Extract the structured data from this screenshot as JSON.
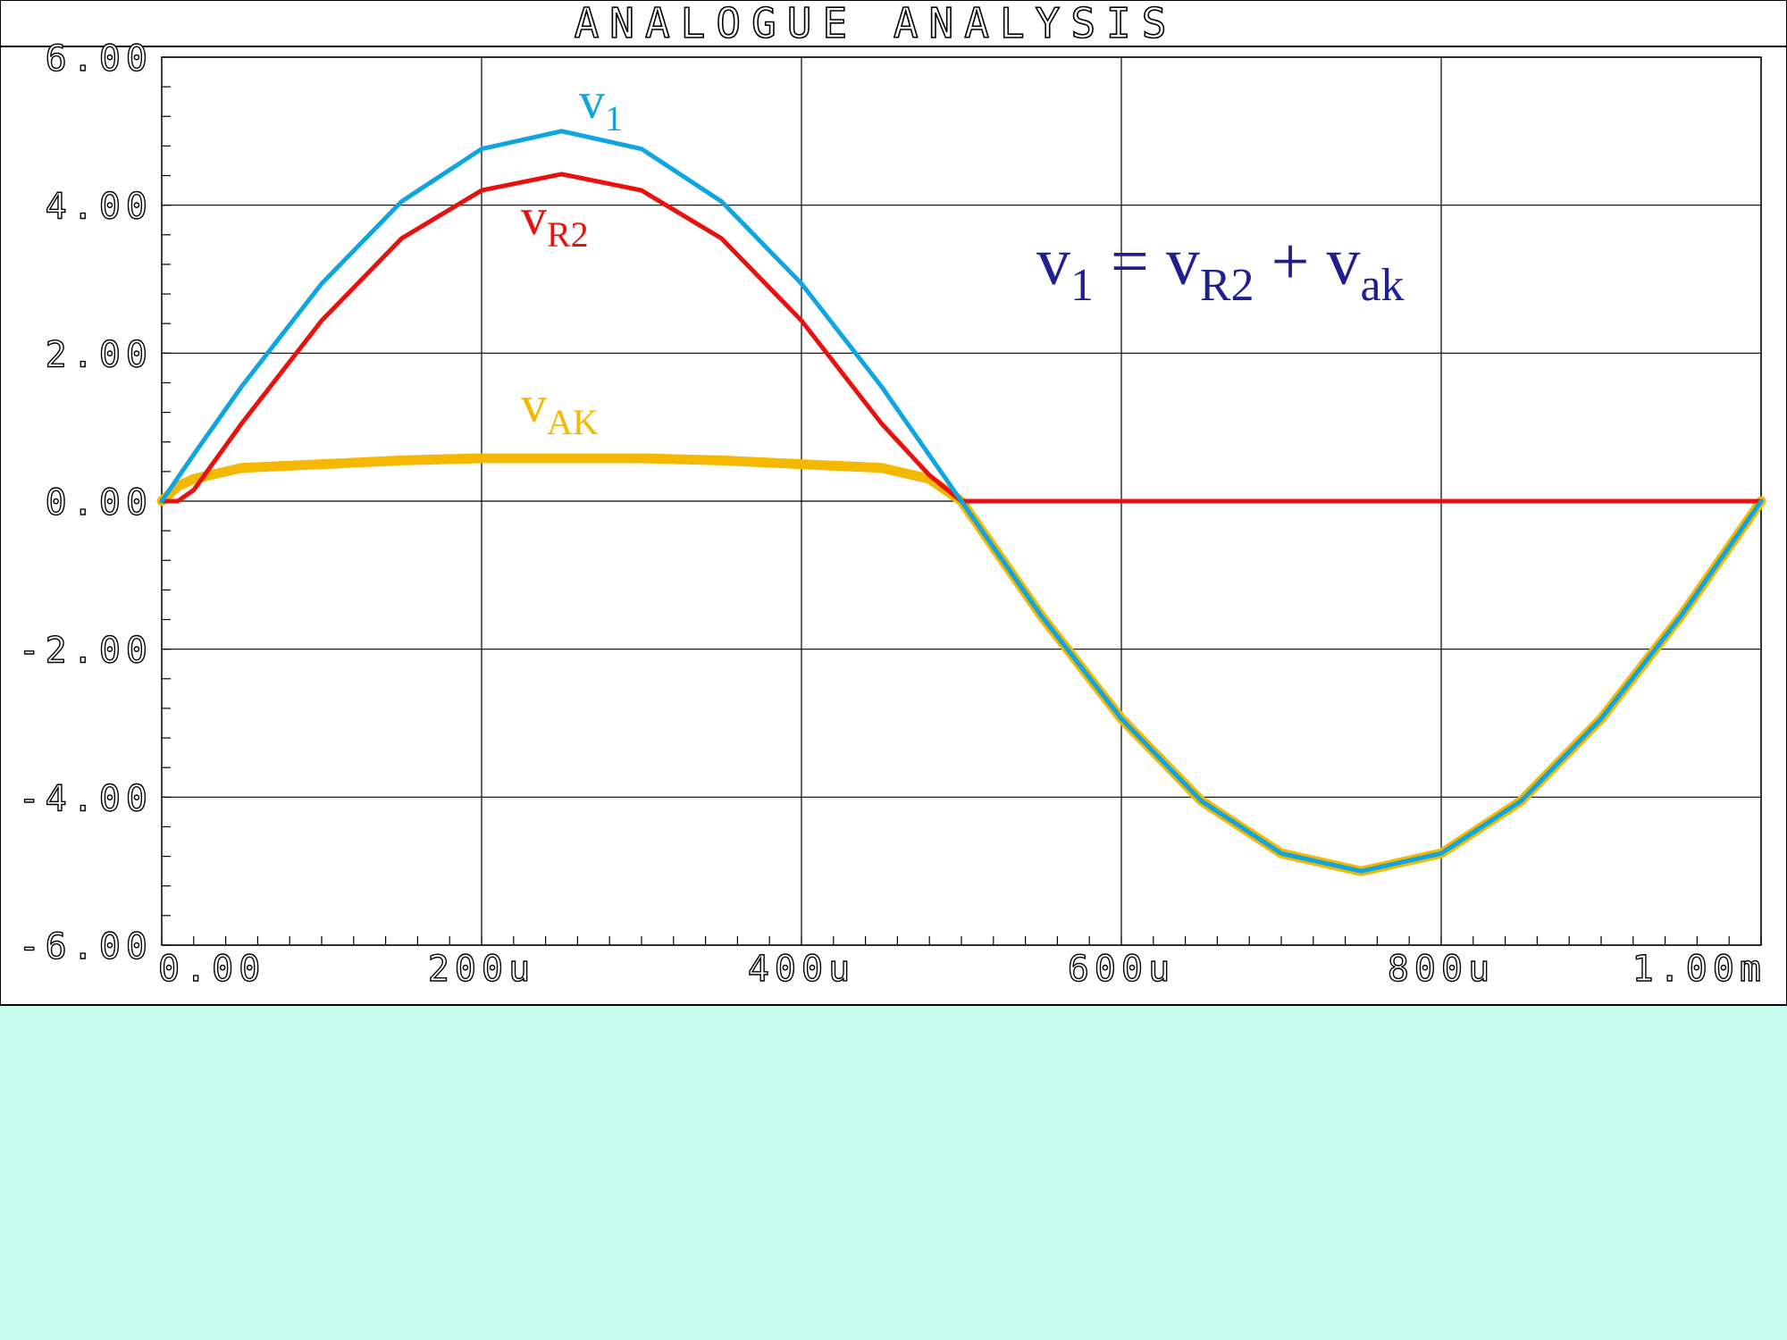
{
  "page": {
    "background": "#c6fdee",
    "panel_background": "#ffffff"
  },
  "chart_data": {
    "type": "line",
    "title": "ANALOGUE ANALYSIS",
    "xlabel": "",
    "ylabel": "",
    "xlim": [
      0,
      0.001
    ],
    "ylim": [
      -6,
      6
    ],
    "grid": true,
    "x_ticks": [
      {
        "value": 0,
        "label": "0.00"
      },
      {
        "value": 0.0002,
        "label": "200u"
      },
      {
        "value": 0.0004,
        "label": "400u"
      },
      {
        "value": 0.0006,
        "label": "600u"
      },
      {
        "value": 0.0008,
        "label": "800u"
      },
      {
        "value": 0.001,
        "label": "1.00m"
      }
    ],
    "y_ticks": [
      {
        "value": 6,
        "label": "6.00"
      },
      {
        "value": 4,
        "label": "4.00"
      },
      {
        "value": 2,
        "label": "2.00"
      },
      {
        "value": 0,
        "label": "0.00"
      },
      {
        "value": -2,
        "label": "-2.00"
      },
      {
        "value": -4,
        "label": "-4.00"
      },
      {
        "value": -6,
        "label": "-6.00"
      }
    ],
    "series": [
      {
        "name": "v1",
        "label_main": "v",
        "label_sub": "1",
        "color": "#0ea5e0",
        "x": [
          0,
          2e-05,
          5e-05,
          0.0001,
          0.00015,
          0.0002,
          0.00025,
          0.0003,
          0.00035,
          0.0004,
          0.00045,
          0.0005,
          0.00055,
          0.0006,
          0.00065,
          0.0007,
          0.00075,
          0.0008,
          0.00085,
          0.0009,
          0.00095,
          0.001
        ],
        "y": [
          0,
          0.63,
          1.55,
          2.94,
          4.05,
          4.76,
          5.0,
          4.76,
          4.05,
          2.94,
          1.55,
          0,
          -1.55,
          -2.94,
          -4.05,
          -4.76,
          -5.0,
          -4.76,
          -4.05,
          -2.94,
          -1.55,
          0
        ]
      },
      {
        "name": "vR2",
        "label_main": "v",
        "label_sub": "R2",
        "color": "#e8110d",
        "x": [
          0,
          1e-05,
          2e-05,
          5e-05,
          0.0001,
          0.00015,
          0.0002,
          0.00025,
          0.0003,
          0.00035,
          0.0004,
          0.00045,
          0.00048,
          0.0005,
          0.001
        ],
        "y": [
          0,
          0,
          0.15,
          1.05,
          2.44,
          3.55,
          4.2,
          4.42,
          4.2,
          3.55,
          2.44,
          1.05,
          0.35,
          0,
          0
        ]
      },
      {
        "name": "vAK",
        "label_main": "v",
        "label_sub": "AK",
        "color": "#f5b800",
        "x": [
          0,
          1e-05,
          2e-05,
          5e-05,
          0.0001,
          0.00015,
          0.0002,
          0.00025,
          0.0003,
          0.00035,
          0.0004,
          0.00045,
          0.00048,
          0.0005,
          0.00055,
          0.0006,
          0.00065,
          0.0007,
          0.00075,
          0.0008,
          0.00085,
          0.0009,
          0.00095,
          0.001
        ],
        "y": [
          0,
          0.2,
          0.3,
          0.45,
          0.5,
          0.55,
          0.58,
          0.58,
          0.58,
          0.55,
          0.5,
          0.45,
          0.3,
          0,
          -1.55,
          -2.94,
          -4.05,
          -4.76,
          -5.0,
          -4.76,
          -4.05,
          -2.94,
          -1.55,
          0
        ]
      }
    ],
    "annotation": {
      "color": "#1f1f8f",
      "parts": [
        {
          "main": "v",
          "sub": "1"
        },
        {
          "op": "="
        },
        {
          "main": "v",
          "sub": "R2"
        },
        {
          "op": "+"
        },
        {
          "main": "v",
          "sub": "ak"
        }
      ]
    }
  }
}
